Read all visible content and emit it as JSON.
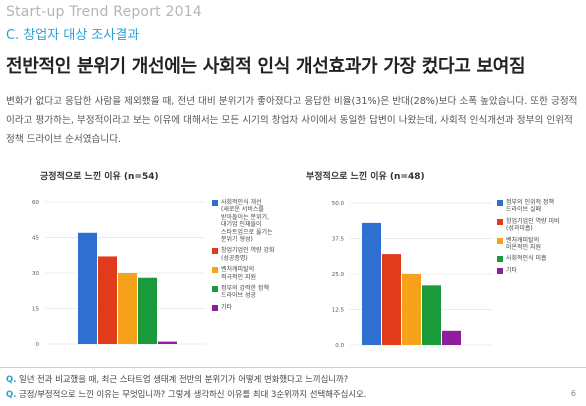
{
  "header": {
    "report_title": "Start-up Trend Report 2014",
    "section_label": "C. 창업자 대상 조사결과"
  },
  "headline": "전반적인 분위기 개선에는 사회적 인식 개선효과가 가장 컸다고 보여짐",
  "body_text": "변화가 없다고 응답한 사람을 제외했을 때, 전년 대비 분위기가 좋아졌다고 응답한 비율(31%)은 반대(28%)보다 소폭 높았습니다. 또한 긍정적이라고 평가하는, 부정적이라고 보는 이유에 대해서는 모든 시기의 창업자 사이에서 동일한 답변이 나왔는데, 사회적 인식개선과 정부의 인위적 정책 드라이브 순서였습니다.",
  "chart_data": [
    {
      "type": "bar",
      "title": "긍정적으로 느낀 이유 (n=54)",
      "ylim": [
        0,
        60
      ],
      "yticks": [
        "0",
        "15",
        "30",
        "45",
        "60"
      ],
      "series": [
        {
          "name": "사회적인식 개선 (새로운 서비스를 받아들이는 분위기, 대기업 인재들이 스타트업으로 옮기는 분위기 형성)",
          "value": 47,
          "color": "#2e6fd1"
        },
        {
          "name": "창업기업인 역량 강화 (성공증명)",
          "value": 37,
          "color": "#e03c1c"
        },
        {
          "name": "벤처캐피탈의 적극적인 지원",
          "value": 30,
          "color": "#f7a21b"
        },
        {
          "name": "정부의 강력한 정책 드라이브 성공",
          "value": 28,
          "color": "#1a9a3a"
        },
        {
          "name": "기타",
          "value": 1,
          "color": "#8e1e9e"
        }
      ]
    },
    {
      "type": "bar",
      "title": "부정적으로 느낀 이유 (n=48)",
      "ylim": [
        0,
        50
      ],
      "yticks": [
        "0.0",
        "12.5",
        "25.0",
        "37.5",
        "50.0"
      ],
      "series": [
        {
          "name": "정부의 인위적 정책 드라이브 실패",
          "value": 43,
          "color": "#2e6fd1"
        },
        {
          "name": "창업기업인 역량 미비 (성과미흡)",
          "value": 32,
          "color": "#e03c1c"
        },
        {
          "name": "벤처캐피탈의 미온적인 지원",
          "value": 25,
          "color": "#f7a21b"
        },
        {
          "name": "사회적인식 미흡",
          "value": 21,
          "color": "#1a9a3a"
        },
        {
          "name": "기타",
          "value": 5,
          "color": "#8e1e9e"
        }
      ]
    }
  ],
  "legend_left": [
    [
      "사회적인식 개선",
      "(새로운 서비스를",
      "받아들이는 분위기,",
      "대기업 인재들이",
      "스타트업으로 옮기는",
      "분위기 형성)"
    ],
    [
      "창업기업인 역량 강화",
      "(성공증명)"
    ],
    [
      "벤처캐피탈의",
      "적극적인 지원"
    ],
    [
      "정부의 강력한 정책",
      "드라이브 성공"
    ],
    [
      "기타"
    ]
  ],
  "legend_right": [
    [
      "정부의 인위적 정책",
      "드라이브 실패"
    ],
    [
      "창업기업인 역량 미비",
      "(성과미흡)"
    ],
    [
      "벤처캐피탈의",
      "미온적인 지원"
    ],
    [
      "사회적인식 미흡"
    ],
    [
      "기타"
    ]
  ],
  "footer": {
    "q_mark": "Q.",
    "question_1": "일년 전과 비교했을 때, 최근 스타트업 생태계 전반의 분위기가 어떻게 변화했다고 느끼십니까?",
    "question_2": "긍정/부정적으로 느낀 이유는 무엇입니까? 그렇게 생각하신 이유를 최대 3순위까지 선택해주십시오.",
    "page_number": "6"
  }
}
